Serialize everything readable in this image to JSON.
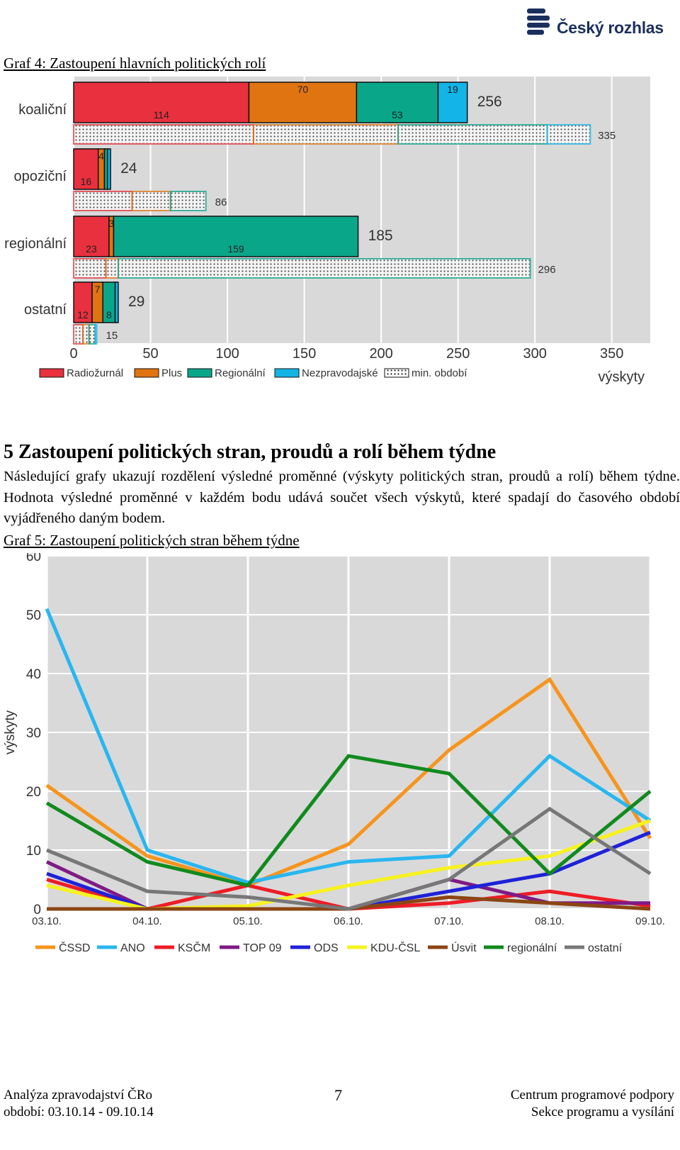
{
  "header": {
    "brand": "Český rozhlas"
  },
  "graph4": {
    "caption": "Graf 4: Zastoupení hlavních politických rolí",
    "chart_data": {
      "type": "bar",
      "orientation": "horizontal",
      "stacked": true,
      "categories": [
        "koaliční",
        "opoziční",
        "regionální",
        "ostatní"
      ],
      "series": [
        {
          "name": "Radiožurnál",
          "color": "#e8303e",
          "values": [
            114,
            16,
            23,
            12
          ]
        },
        {
          "name": "Plus",
          "color": "#e07410",
          "values": [
            70,
            4,
            3,
            7
          ]
        },
        {
          "name": "Regionální",
          "color": "#0aa68a",
          "values": [
            53,
            2,
            159,
            8
          ]
        },
        {
          "name": "Nezpravodajské",
          "color": "#13b4e6",
          "values": [
            19,
            2,
            0,
            2
          ]
        }
      ],
      "segment_labels": [
        [
          "114",
          "70",
          "53",
          "19"
        ],
        [
          "16",
          "4",
          "",
          ""
        ],
        [
          "23",
          "3",
          "159",
          ""
        ],
        [
          "12",
          "7",
          "8",
          ""
        ]
      ],
      "totals": [
        256,
        24,
        185,
        29
      ],
      "previous_period": {
        "name": "min. období",
        "totals": [
          335,
          86,
          296,
          15
        ],
        "segments": [
          [
            117,
            94,
            97,
            28
          ],
          [
            38,
            25,
            23,
            0
          ],
          [
            21,
            8,
            268,
            0
          ],
          [
            6,
            4,
            4,
            1
          ]
        ]
      },
      "xlabel": "výskyty",
      "xlim": [
        0,
        375
      ],
      "xticks": [
        0,
        50,
        100,
        150,
        200,
        250,
        300,
        350
      ]
    }
  },
  "section5": {
    "heading": "5 Zastoupení politických stran, proudů a rolí během týdne",
    "paragraph": "Následující grafy ukazují rozdělení výsledné proměnné (výskyty politických stran, proudů a rolí) během týdne. Hodnota výsledné proměnné v každém bodu udává součet všech výskytů, které spadají do časového období vyjádřeného daným bodem."
  },
  "graph5": {
    "caption": "Graf 5: Zastoupení politických stran během týdne",
    "chart_data": {
      "type": "line",
      "x": [
        "03.10.",
        "04.10.",
        "05.10.",
        "06.10.",
        "07.10.",
        "08.10.",
        "09.10."
      ],
      "ylabel": "výskyty",
      "ylim": [
        0,
        60
      ],
      "yticks": [
        0,
        10,
        20,
        30,
        40,
        50,
        60
      ],
      "series": [
        {
          "name": "ČSSD",
          "color": "#f7941d",
          "values": [
            21,
            9,
            4,
            11,
            27,
            39,
            12
          ]
        },
        {
          "name": "ANO",
          "color": "#29b6f0",
          "values": [
            51,
            10,
            4.5,
            8,
            9,
            26,
            15
          ]
        },
        {
          "name": "KSČM",
          "color": "#ee1c25",
          "values": [
            5,
            0,
            4,
            0,
            1,
            3,
            0.5
          ]
        },
        {
          "name": "TOP 09",
          "color": "#7f1a86",
          "values": [
            8,
            0,
            0,
            0,
            5,
            1,
            1
          ]
        },
        {
          "name": "ODS",
          "color": "#1e22d8",
          "values": [
            6,
            0,
            0,
            0,
            3,
            6,
            13
          ]
        },
        {
          "name": "KDU-ČSL",
          "color": "#f7f21e",
          "values": [
            4,
            0,
            0.5,
            4,
            7,
            9,
            15
          ]
        },
        {
          "name": "Úsvit",
          "color": "#8b4513",
          "values": [
            0,
            0,
            0,
            0,
            2,
            1,
            0
          ]
        },
        {
          "name": "regionální",
          "color": "#118a1e",
          "values": [
            18,
            8,
            4,
            26,
            23,
            6,
            20
          ]
        },
        {
          "name": "ostatní",
          "color": "#777777",
          "values": [
            10,
            3,
            2,
            0,
            5,
            17,
            6
          ]
        }
      ]
    }
  },
  "footer": {
    "left_line1": "Analýza zpravodajství ČRo",
    "left_line2": "období: 03.10.14 - 09.10.14",
    "page": "7",
    "right_line1": "Centrum programové podpory",
    "right_line2": "Sekce programu a vysílání"
  }
}
